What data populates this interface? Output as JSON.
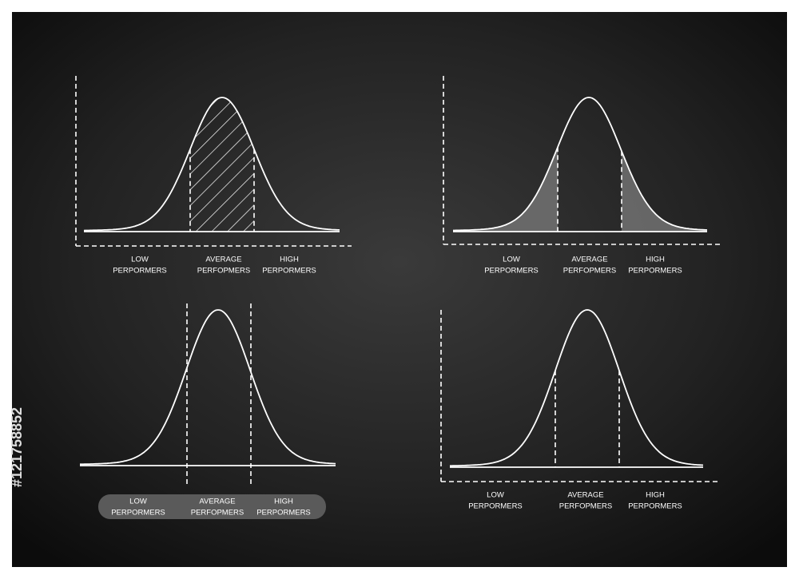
{
  "panels": [
    {
      "labels": [
        [
          "LOW",
          "PERPORMERS"
        ],
        [
          "AVERAGE",
          "PERFOPMERS"
        ],
        [
          "HIGH",
          "PERPORMERS"
        ]
      ]
    },
    {
      "labels": [
        [
          "LOW",
          "PERPORMERS"
        ],
        [
          "AVERAGE",
          "PERFOPMERS"
        ],
        [
          "HIGH",
          "PERPORMERS"
        ]
      ]
    },
    {
      "labels": [
        [
          "LOW",
          "PERPORMERS"
        ],
        [
          "AVERAGE",
          "PERFOPMERS"
        ],
        [
          "HIGH",
          "PERPORMERS"
        ]
      ]
    },
    {
      "labels": [
        [
          "LOW",
          "PERPORMERS"
        ],
        [
          "AVERAGE",
          "PERFOPMERS"
        ],
        [
          "HIGH",
          "PERPORMERS"
        ]
      ]
    }
  ],
  "stock_id": "#121758852"
}
